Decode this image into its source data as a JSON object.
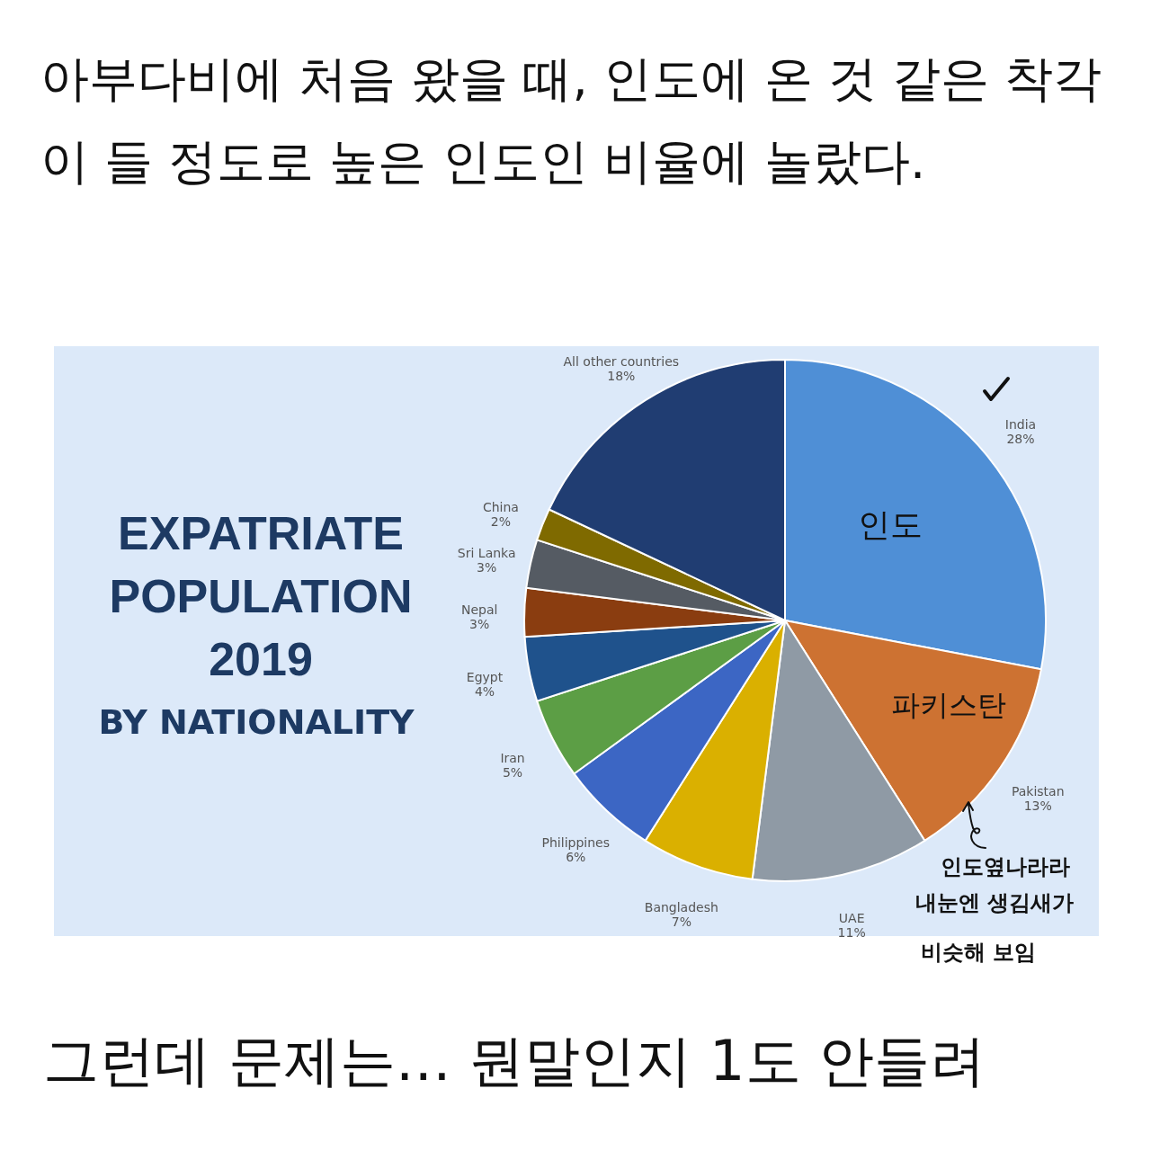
{
  "chart_data": {
    "type": "pie",
    "title": "아부다비에 처음 왔을 때, 인도에 온 것 같은 착각이 들 정도로 높은 인도인 비율에 놀랐다.",
    "categories": [
      "India",
      "Pakistan",
      "UAE",
      "Bangladesh",
      "Philippines",
      "Iran",
      "Egypt",
      "Nepal",
      "Sri Lanka",
      "China",
      "All other countries"
    ],
    "values": [
      28,
      13,
      11,
      7,
      6,
      5,
      4,
      3,
      3,
      2,
      18
    ],
    "value_labels": [
      "28%",
      "13%",
      "11%",
      "7%",
      "6%",
      "5%",
      "4%",
      "3%",
      "3%",
      "2%",
      "18%"
    ],
    "colors": [
      "#4f8fd6",
      "#cd7232",
      "#8f9aa5",
      "#dab000",
      "#3c66c4",
      "#5c9e45",
      "#1f528c",
      "#8a3d10",
      "#555b63",
      "#7f6a00",
      "#203d72"
    ],
    "annotations": [
      "EXPATRIATE",
      "POPULATION",
      "2019",
      "BY NATIONALITY",
      "인도",
      "파키스탄",
      "인도옆나라라",
      "내눈엔 생김새가",
      "비슷해 보임",
      "그런데 문제는… 뭔말인지 1도 안들려"
    ]
  }
}
